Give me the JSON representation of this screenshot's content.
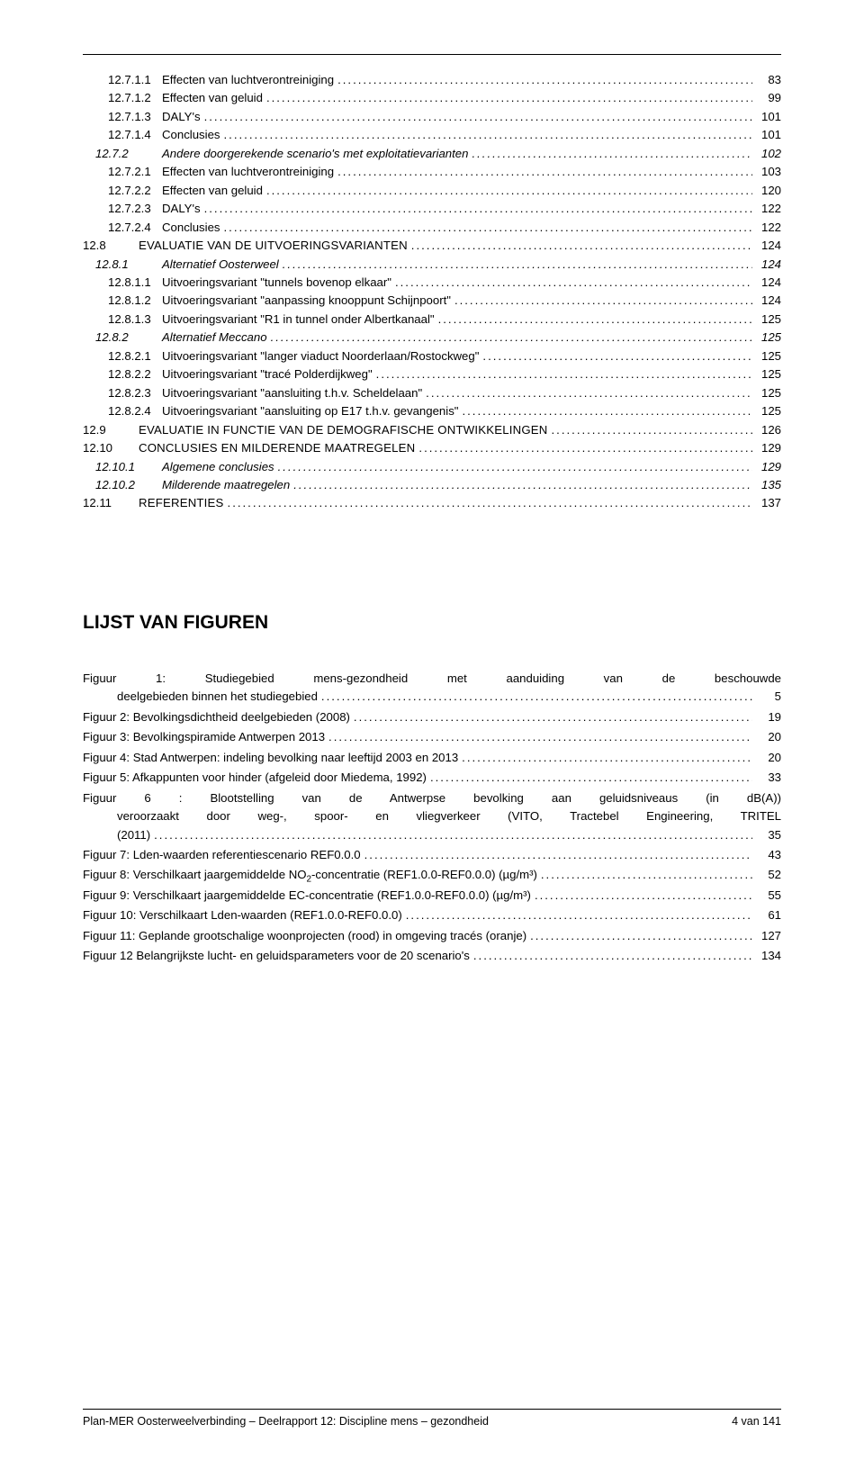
{
  "toc": [
    {
      "lvl": "lvl-4",
      "num": "12.7.1.1",
      "label": "Effecten van luchtverontreiniging",
      "page": "83"
    },
    {
      "lvl": "lvl-4",
      "num": "12.7.1.2",
      "label": "Effecten van geluid",
      "page": "99"
    },
    {
      "lvl": "lvl-4",
      "num": "12.7.1.3",
      "label": "DALY's",
      "page": "101"
    },
    {
      "lvl": "lvl-4",
      "num": "12.7.1.4",
      "label": "Conclusies",
      "page": "101"
    },
    {
      "lvl": "lvl-3i",
      "num": "12.7.2",
      "label": "Andere doorgerekende scenario's met exploitatievarianten",
      "page": "102",
      "italic": true
    },
    {
      "lvl": "lvl-4",
      "num": "12.7.2.1",
      "label": "Effecten van luchtverontreiniging",
      "page": "103"
    },
    {
      "lvl": "lvl-4",
      "num": "12.7.2.2",
      "label": "Effecten van geluid",
      "page": "120"
    },
    {
      "lvl": "lvl-4",
      "num": "12.7.2.3",
      "label": "DALY's",
      "page": "122"
    },
    {
      "lvl": "lvl-4",
      "num": "12.7.2.4",
      "label": "Conclusies",
      "page": "122"
    },
    {
      "lvl": "lvl-2",
      "num": "12.8",
      "label": "EVALUATIE VAN DE UITVOERINGSVARIANTEN",
      "page": "124",
      "sc": true
    },
    {
      "lvl": "lvl-3i",
      "num": "12.8.1",
      "label": "Alternatief Oosterweel",
      "page": "124",
      "italic": true
    },
    {
      "lvl": "lvl-4",
      "num": "12.8.1.1",
      "label": "Uitvoeringsvariant \"tunnels bovenop elkaar\"",
      "page": "124"
    },
    {
      "lvl": "lvl-4",
      "num": "12.8.1.2",
      "label": "Uitvoeringsvariant \"aanpassing knooppunt Schijnpoort\"",
      "page": "124"
    },
    {
      "lvl": "lvl-4",
      "num": "12.8.1.3",
      "label": "Uitvoeringsvariant \"R1 in tunnel onder Albertkanaal\"",
      "page": "125"
    },
    {
      "lvl": "lvl-3i",
      "num": "12.8.2",
      "label": "Alternatief Meccano",
      "page": "125",
      "italic": true
    },
    {
      "lvl": "lvl-4",
      "num": "12.8.2.1",
      "label": "Uitvoeringsvariant \"langer viaduct Noorderlaan/Rostockweg\"",
      "page": "125"
    },
    {
      "lvl": "lvl-4",
      "num": "12.8.2.2",
      "label": "Uitvoeringsvariant \"tracé Polderdijkweg\"",
      "page": "125"
    },
    {
      "lvl": "lvl-4",
      "num": "12.8.2.3",
      "label": "Uitvoeringsvariant \"aansluiting t.h.v. Scheldelaan\"",
      "page": "125"
    },
    {
      "lvl": "lvl-4",
      "num": "12.8.2.4",
      "label": "Uitvoeringsvariant \"aansluiting op E17 t.h.v. gevangenis\"",
      "page": "125"
    },
    {
      "lvl": "lvl-2",
      "num": "12.9",
      "label": "EVALUATIE IN FUNCTIE VAN DE DEMOGRAFISCHE ONTWIKKELINGEN",
      "page": "126",
      "sc": true
    },
    {
      "lvl": "lvl-2",
      "num": "12.10",
      "label": "CONCLUSIES EN MILDERENDE MAATREGELEN",
      "page": "129",
      "sc": true
    },
    {
      "lvl": "lvl-3i",
      "num": "12.10.1",
      "label": "Algemene conclusies",
      "page": "129",
      "italic": true
    },
    {
      "lvl": "lvl-3i",
      "num": "12.10.2",
      "label": "Milderende maatregelen",
      "page": "135",
      "italic": true
    },
    {
      "lvl": "lvl-2",
      "num": "12.11",
      "label": "REFERENTIES",
      "page": "137",
      "sc": true
    }
  ],
  "figlist_title": "LIJST VAN FIGUREN",
  "figures": [
    {
      "multi": true,
      "lines": [
        "Figuur 1: Studiegebied mens-gezondheid met aanduiding van de beschouwde"
      ],
      "last_indent": true,
      "last": "deelgebieden binnen het studiegebied",
      "page": "5"
    },
    {
      "label": "Figuur 2: Bevolkingsdichtheid deelgebieden (2008)",
      "page": "19"
    },
    {
      "label": "Figuur 3: Bevolkingspiramide Antwerpen 2013",
      "page": "20"
    },
    {
      "label": "Figuur 4: Stad Antwerpen: indeling bevolking naar leeftijd 2003 en 2013",
      "page": "20"
    },
    {
      "label": "Figuur 5: Afkappunten voor hinder (afgeleid door Miedema, 1992)",
      "page": "33"
    },
    {
      "multi": true,
      "lines": [
        "Figuur 6 : Blootstelling van de Antwerpse bevolking aan geluidsniveaus (in dB(A))",
        "veroorzaakt door weg-, spoor- en vliegverkeer (VITO, Tractebel Engineering, TRITEL"
      ],
      "last_indent": true,
      "last": "(2011)",
      "page": "35"
    },
    {
      "label": "Figuur 7: Lden-waarden referentiescenario REF0.0.0",
      "page": "43"
    },
    {
      "html": "Figuur 8: Verschilkaart jaargemiddelde NO<sub>2</sub>-concentratie (REF1.0.0-REF0.0.0) (µg/m³)",
      "page": "52"
    },
    {
      "label": "Figuur 9: Verschilkaart jaargemiddelde EC-concentratie (REF1.0.0-REF0.0.0) (µg/m³)",
      "page": "55"
    },
    {
      "label": "Figuur 10: Verschilkaart Lden-waarden (REF1.0.0-REF0.0.0)",
      "page": "61"
    },
    {
      "label": "Figuur 11: Geplande grootschalige woonprojecten (rood) in omgeving tracés (oranje)",
      "page": "127"
    },
    {
      "label": "Figuur 12  Belangrijkste lucht- en geluidsparameters voor de 20 scenario's",
      "page": "134"
    }
  ],
  "footer": {
    "left": "Plan-MER Oosterweelverbinding – Deelrapport 12: Discipline mens – gezondheid",
    "right": "4 van 141"
  }
}
